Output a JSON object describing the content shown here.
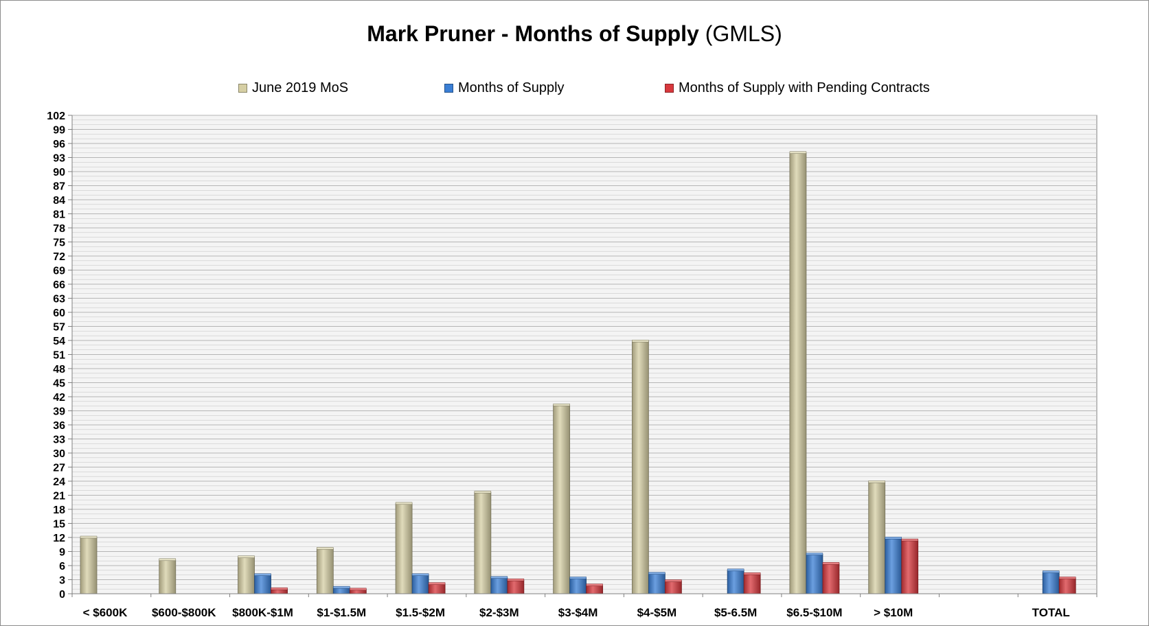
{
  "title": {
    "main": "Mark Pruner - Months of Supply",
    "suffix": "(GMLS)"
  },
  "colors": {
    "june_2019_mos": "#d6cfa4",
    "months_of_supply": "#3a7fd5",
    "months_of_supply_pending": "#d8383d",
    "grid": "#c9c9c9",
    "plot_background": "#f4f4f4"
  },
  "chart_data": {
    "type": "bar",
    "title": "Mark Pruner - Months of Supply (GMLS)",
    "xlabel": "",
    "ylabel": "",
    "ylim": [
      0,
      102
    ],
    "ytick_step": 3,
    "grid": true,
    "legend_position": "top",
    "categories": [
      "< $600K",
      "$600-$800K",
      "$800K-$1M",
      "$1-$1.5M",
      "$1.5-$2M",
      "$2-$3M",
      "$3-$4M",
      "$4-$5M",
      "$5-6.5M",
      "$6.5-$10M",
      "> $10M",
      "",
      "TOTAL"
    ],
    "series": [
      {
        "name": "June 2019 MoS",
        "values": [
          12,
          7.2,
          7.8,
          9.6,
          19.2,
          21.6,
          40.2,
          53.8,
          null,
          94,
          23.8,
          null,
          null
        ]
      },
      {
        "name": "Months of Supply",
        "values": [
          null,
          null,
          4,
          1.3,
          4,
          3.4,
          3.3,
          4.3,
          5,
          8.4,
          11.8,
          null,
          4.6
        ]
      },
      {
        "name": "Months of Supply with Pending Contracts",
        "values": [
          null,
          null,
          1,
          0.9,
          2.1,
          2.9,
          1.8,
          2.7,
          4.2,
          6.4,
          11.4,
          null,
          3.3
        ]
      }
    ]
  }
}
